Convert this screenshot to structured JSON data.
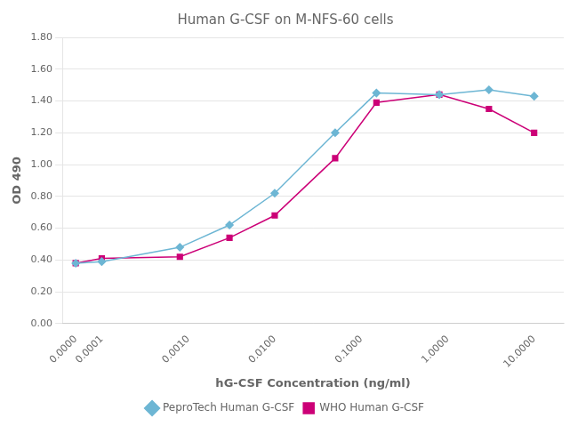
{
  "chart_data": {
    "type": "line",
    "title": "Human G-CSF on M-NFS-60 cells",
    "xlabel": "hG-CSF Concentration (ng/ml)",
    "ylabel": "OD 490",
    "x": [
      5e-05,
      0.0001,
      0.0008,
      0.003,
      0.01,
      0.05,
      0.15,
      0.8,
      3.0,
      10.0
    ],
    "series": [
      {
        "name": "PeproTech Human G-CSF",
        "color": "#6DB6D4",
        "marker": "diamond",
        "values": [
          0.38,
          0.39,
          0.48,
          0.62,
          0.82,
          1.2,
          1.45,
          1.44,
          1.47,
          1.43
        ]
      },
      {
        "name": "WHO Human G-CSF",
        "color": "#CC0077",
        "marker": "square",
        "values": [
          0.38,
          0.41,
          0.42,
          0.54,
          0.68,
          1.04,
          1.39,
          1.44,
          1.35,
          1.2
        ]
      }
    ],
    "log": "x",
    "xlim": [
      3.5e-05,
      22.0
    ],
    "xticks": [
      {
        "value": 5e-05,
        "label": "0.0000"
      },
      0.0001,
      {
        "value": 0.001,
        "label": "0.0010"
      },
      {
        "value": 0.01,
        "label": "0.0100"
      },
      {
        "value": 0.1,
        "label": "0.1000"
      },
      {
        "value": 1.0,
        "label": "1.0000"
      },
      {
        "value": 10.0,
        "label": "10.0000"
      }
    ],
    "ylim": [
      0.0,
      1.8
    ],
    "yticks": [
      {
        "value": 0.0,
        "label": "0.00"
      },
      {
        "value": 0.2,
        "label": "0.20"
      },
      {
        "value": 0.4,
        "label": "0.40"
      },
      {
        "value": 0.6,
        "label": "0.60"
      },
      {
        "value": 0.8,
        "label": "0.80"
      },
      {
        "value": 1.0,
        "label": "1.00"
      },
      {
        "value": 1.2,
        "label": "1.20"
      },
      {
        "value": 1.4,
        "label": "1.40"
      },
      {
        "value": 1.6,
        "label": "1.60"
      },
      {
        "value": 1.8,
        "label": "1.80"
      }
    ],
    "grid": "y",
    "legend": "bottom"
  }
}
